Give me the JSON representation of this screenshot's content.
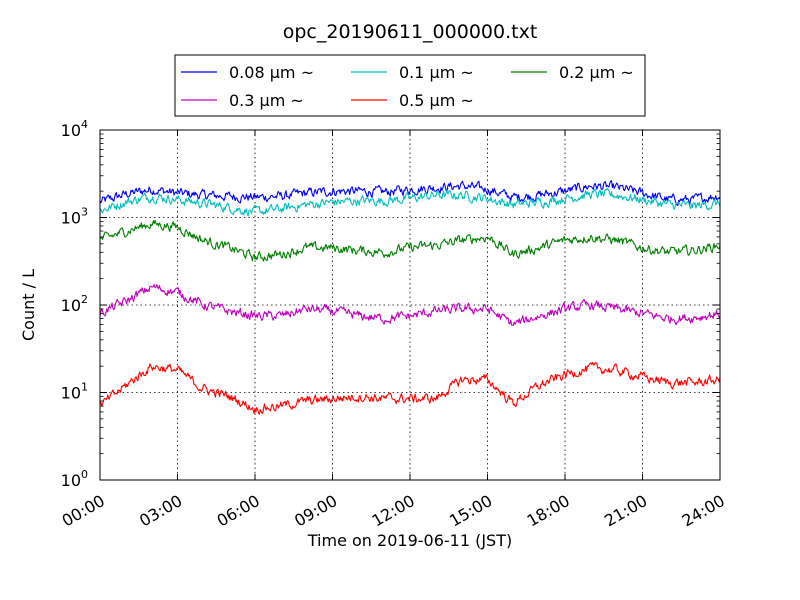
{
  "chart_data": {
    "type": "line",
    "title": "opc_20190611_000000.txt",
    "xlabel": "Time on 2019-06-11 (JST)",
    "ylabel": "Count / L",
    "x_ticks": [
      "00:00",
      "03:00",
      "06:00",
      "09:00",
      "12:00",
      "15:00",
      "18:00",
      "21:00",
      "24:00"
    ],
    "x_range_hours": [
      0,
      24
    ],
    "y_scale": "log",
    "ylim": [
      1,
      10000
    ],
    "y_ticks": [
      {
        "base": "10",
        "exp": "0"
      },
      {
        "base": "10",
        "exp": "1"
      },
      {
        "base": "10",
        "exp": "2"
      },
      {
        "base": "10",
        "exp": "3"
      },
      {
        "base": "10",
        "exp": "4"
      }
    ],
    "grid": true,
    "legend": "top",
    "x_hours": [
      0,
      1,
      2,
      3,
      4,
      5,
      6,
      7,
      8,
      9,
      10,
      11,
      12,
      13,
      14,
      15,
      16,
      17,
      18,
      19,
      20,
      21,
      22,
      23,
      24
    ],
    "series": [
      {
        "name": "0.08 μm ~",
        "color": "#0000ff",
        "values": [
          1500,
          1850,
          2100,
          1900,
          1800,
          1750,
          1700,
          1750,
          1900,
          2000,
          2000,
          1950,
          2100,
          2200,
          2300,
          2100,
          1700,
          1800,
          2000,
          2300,
          2200,
          1900,
          1600,
          1600,
          1800
        ]
      },
      {
        "name": "0.1 μm ~",
        "color": "#00bfbf",
        "values": [
          1200,
          1500,
          1750,
          1600,
          1450,
          1300,
          1150,
          1250,
          1400,
          1500,
          1550,
          1550,
          1650,
          1800,
          1800,
          1650,
          1400,
          1500,
          1650,
          1850,
          1800,
          1600,
          1400,
          1350,
          1450
        ]
      },
      {
        "name": "0.2 μm ~",
        "color": "#008000",
        "values": [
          550,
          700,
          850,
          780,
          550,
          450,
          350,
          380,
          450,
          450,
          420,
          400,
          450,
          480,
          550,
          600,
          380,
          450,
          550,
          600,
          550,
          450,
          400,
          420,
          480
        ]
      },
      {
        "name": "0.3 μm ~",
        "color": "#bf00bf",
        "values": [
          80,
          110,
          160,
          140,
          100,
          85,
          75,
          75,
          90,
          85,
          75,
          70,
          75,
          85,
          90,
          90,
          60,
          75,
          90,
          100,
          90,
          80,
          70,
          72,
          80
        ]
      },
      {
        "name": "0.5 μm ~",
        "color": "#ff0000",
        "values": [
          7,
          12,
          20,
          18,
          11,
          9,
          6.5,
          7,
          8,
          8.5,
          9,
          8.5,
          8.5,
          8.5,
          14,
          14,
          7.5,
          12,
          16,
          19,
          18,
          15,
          13,
          13,
          14
        ]
      }
    ]
  }
}
